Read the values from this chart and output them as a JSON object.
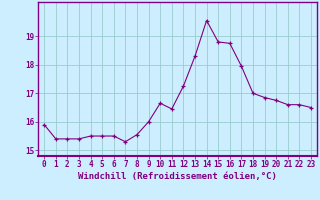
{
  "x": [
    0,
    1,
    2,
    3,
    4,
    5,
    6,
    7,
    8,
    9,
    10,
    11,
    12,
    13,
    14,
    15,
    16,
    17,
    18,
    19,
    20,
    21,
    22,
    23
  ],
  "y": [
    15.9,
    15.4,
    15.4,
    15.4,
    15.5,
    15.5,
    15.5,
    15.3,
    15.55,
    16.0,
    16.65,
    16.45,
    17.25,
    18.3,
    19.55,
    18.8,
    18.75,
    17.95,
    17.0,
    16.85,
    16.75,
    16.6,
    16.6,
    16.5
  ],
  "line_color": "#800080",
  "marker_color": "#800080",
  "background_color": "#cceeff",
  "grid_color": "#99cccc",
  "axis_line_color": "#800080",
  "xlabel": "Windchill (Refroidissement éolien,°C)",
  "ylim": [
    14.8,
    20.2
  ],
  "xlim": [
    -0.5,
    23.5
  ],
  "yticks": [
    15,
    16,
    17,
    18,
    19
  ],
  "xticks": [
    0,
    1,
    2,
    3,
    4,
    5,
    6,
    7,
    8,
    9,
    10,
    11,
    12,
    13,
    14,
    15,
    16,
    17,
    18,
    19,
    20,
    21,
    22,
    23
  ],
  "font_color": "#800080",
  "tick_fontsize": 5.5,
  "label_fontsize": 6.5
}
